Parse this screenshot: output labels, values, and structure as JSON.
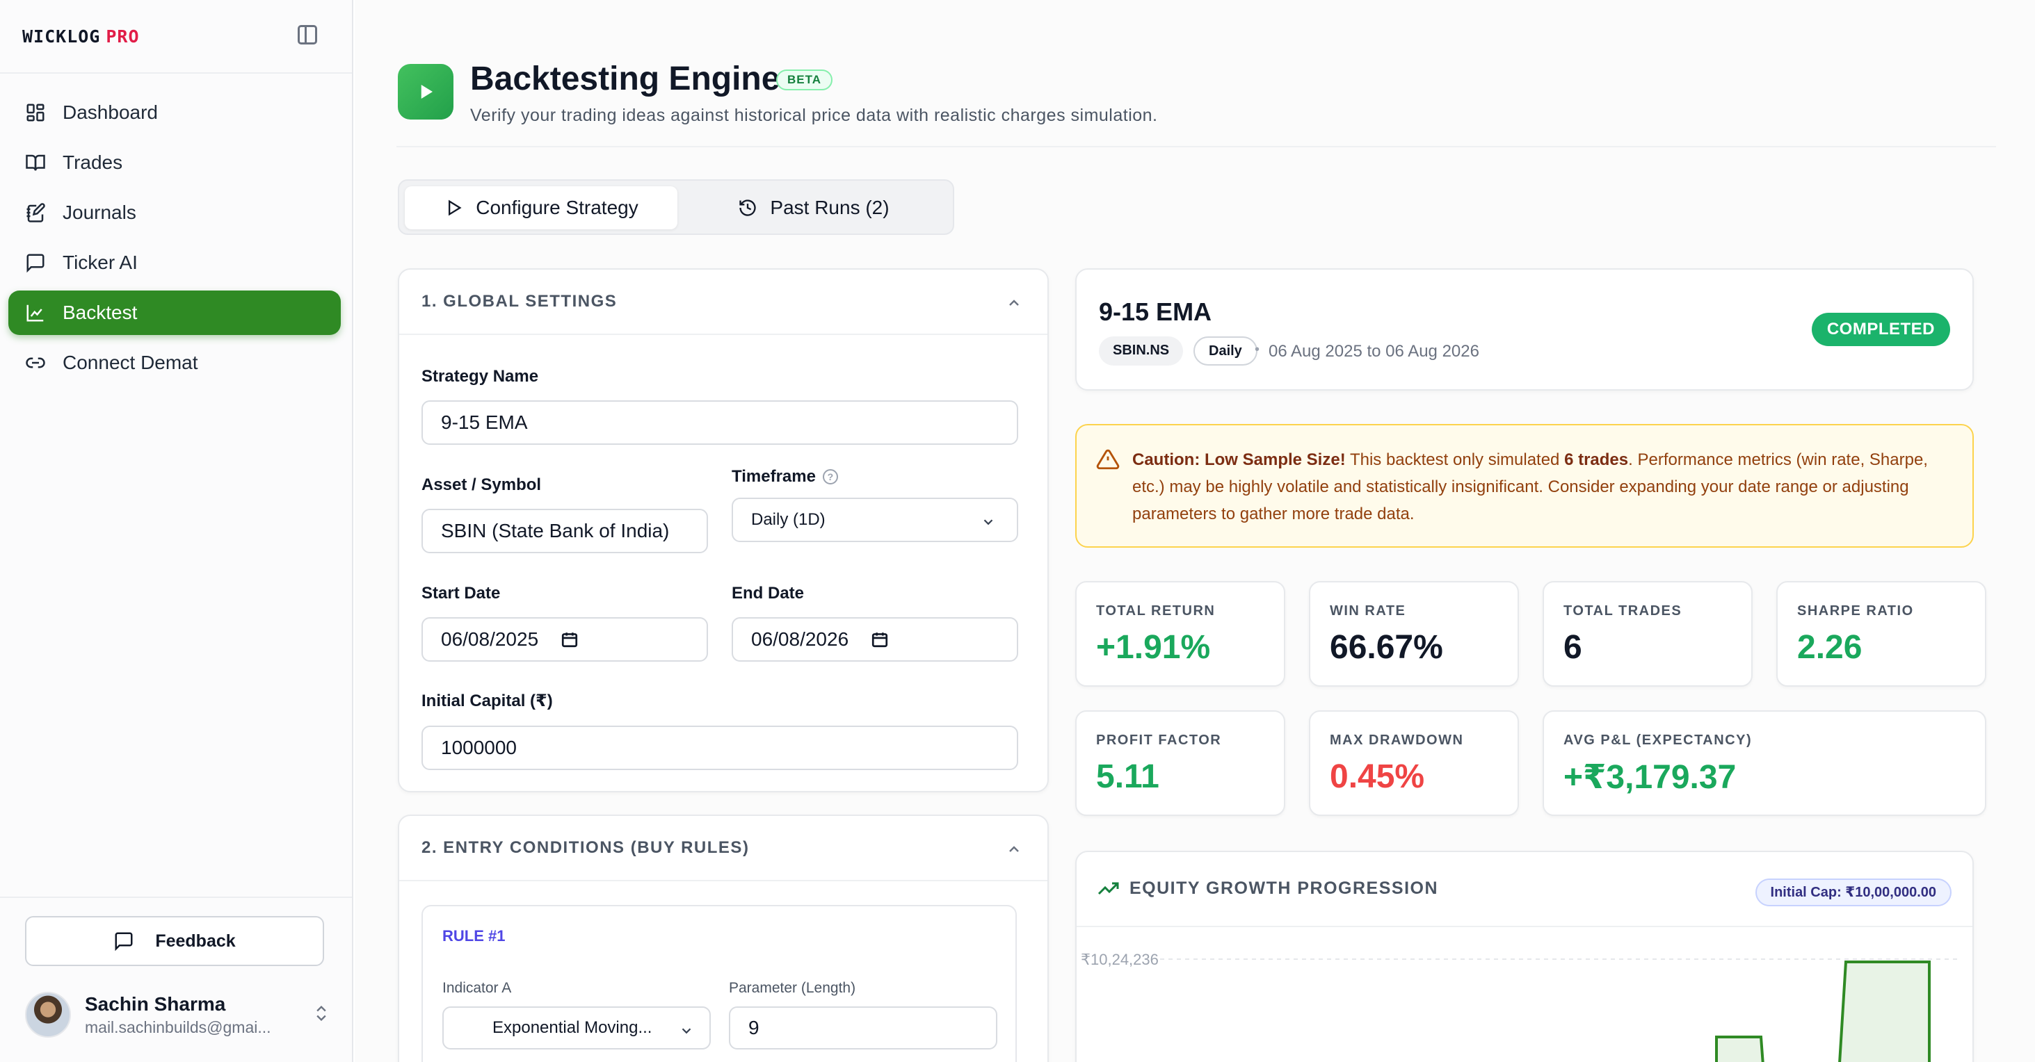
{
  "brand": {
    "part1": "WICKLOG",
    "part2": "PRO"
  },
  "sidebar": {
    "items": [
      {
        "label": "Dashboard",
        "icon": "grid-icon"
      },
      {
        "label": "Trades",
        "icon": "book-icon"
      },
      {
        "label": "Journals",
        "icon": "notebook-pen-icon"
      },
      {
        "label": "Ticker AI",
        "icon": "message-square-icon"
      },
      {
        "label": "Backtest",
        "icon": "line-chart-icon",
        "active": true
      },
      {
        "label": "Connect Demat",
        "icon": "link-icon"
      }
    ],
    "feedback_label": "Feedback",
    "user": {
      "name": "Sachin Sharma",
      "email": "mail.sachinbuilds@gmai..."
    }
  },
  "header": {
    "title": "Backtesting Engine",
    "badge": "BETA",
    "subtitle": "Verify your trading ideas against historical price data with realistic charges simulation."
  },
  "tabs": [
    {
      "label": "Configure Strategy",
      "active": true
    },
    {
      "label": "Past Runs (2)",
      "active": false
    }
  ],
  "global_settings": {
    "heading": "1. GLOBAL SETTINGS",
    "strategy_name_label": "Strategy Name",
    "strategy_name_value": "9-15 EMA",
    "asset_label": "Asset / Symbol",
    "asset_value": "SBIN (State Bank of India)",
    "timeframe_label": "Timeframe",
    "timeframe_value": "Daily (1D)",
    "start_date_label": "Start Date",
    "start_date_value": "06/08/2025",
    "end_date_label": "End Date",
    "end_date_value": "06/08/2026",
    "capital_label": "Initial Capital (₹)",
    "capital_value": "1000000"
  },
  "entry_conditions": {
    "heading": "2. ENTRY CONDITIONS (BUY RULES)",
    "rule_title": "RULE #1",
    "indicator_a_label": "Indicator A",
    "indicator_a_value": "Exponential Moving...",
    "parameter_label": "Parameter (Length)",
    "parameter_value": "9"
  },
  "result": {
    "strategy_name": "9-15 EMA",
    "symbol": "SBIN.NS",
    "interval": "Daily",
    "separator": "•",
    "date_range": "06 Aug 2025 to 06 Aug 2026",
    "status": "COMPLETED"
  },
  "warning": {
    "bold_prefix": "Caution: Low Sample Size!",
    "text1": " This backtest only simulated ",
    "bold_count": "6 trades",
    "text2": ". Performance metrics (win rate, Sharpe, etc.) may be highly volatile and statistically insignificant. Consider expanding your date range or adjusting parameters to gather more trade data."
  },
  "metrics": [
    {
      "label": "TOTAL RETURN",
      "value": "+1.91%",
      "tone": "pos"
    },
    {
      "label": "WIN RATE",
      "value": "66.67%",
      "tone": "dark"
    },
    {
      "label": "TOTAL TRADES",
      "value": "6",
      "tone": "dark"
    },
    {
      "label": "SHARPE RATIO",
      "value": "2.26",
      "tone": "pos"
    },
    {
      "label": "PROFIT FACTOR",
      "value": "5.11",
      "tone": "pos"
    },
    {
      "label": "MAX DRAWDOWN",
      "value": "0.45%",
      "tone": "neg"
    },
    {
      "label": "AVG P&L (EXPECTANCY)",
      "value": "+₹3,179.37",
      "tone": "pos"
    }
  ],
  "equity_chart": {
    "title": "EQUITY GROWTH PROGRESSION",
    "initial_cap_badge": "Initial Cap: ₹10,00,000.00",
    "y_tick_top": "₹10,24,236"
  },
  "colors": {
    "accent": "#2f8a24",
    "positive": "#1aa85c",
    "negative": "#ef4444",
    "status": "#1bb36b"
  }
}
